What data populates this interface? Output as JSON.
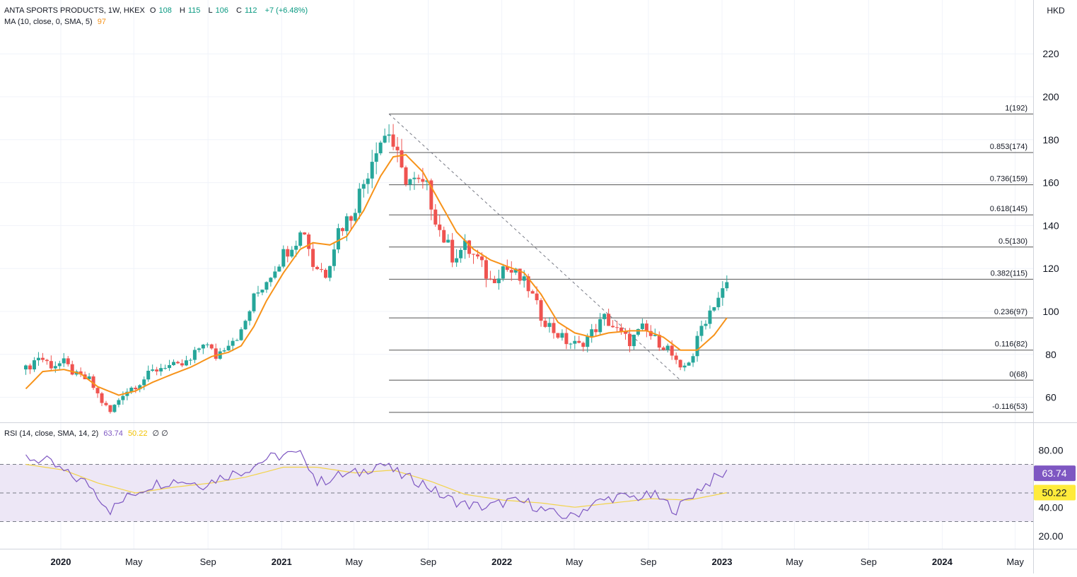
{
  "legend": {
    "symbol": "ANTA SPORTS PRODUCTS, 1W, HKEX",
    "o_label": "O",
    "o_value": "108",
    "h_label": "H",
    "h_value": "115",
    "l_label": "L",
    "l_value": "106",
    "c_label": "C",
    "c_value": "112",
    "change": "+7 (+6.48%)",
    "ma_label": "MA (10, close, 0, SMA, 5)",
    "ma_value": "97",
    "rsi_label": "RSI (14, close, SMA, 14, 2)",
    "rsi_value": "63.74",
    "rsi_ma_value": "50.22",
    "rsi_extra": "∅ ∅"
  },
  "currency": "HKD",
  "colors": {
    "up": "#26a69a",
    "down": "#ef5350",
    "ma": "#f7931a",
    "rsi": "#7e57c2",
    "rsi_ma": "#f2d34a",
    "rsi_band": "#ede7f6",
    "fib_line": "#555555",
    "grid": "#f0f3fa"
  },
  "chart_data": {
    "type": "candlestick",
    "interval": "1W",
    "price_axis": {
      "ticks": [
        60,
        80,
        100,
        120,
        140,
        160,
        180,
        200,
        220
      ],
      "tick_labels": [
        "60",
        "80",
        "100",
        "120",
        "140",
        "160",
        "180",
        "200",
        "220"
      ]
    },
    "time_axis": {
      "labels": [
        "2020",
        "May",
        "Sep",
        "2021",
        "May",
        "Sep",
        "2022",
        "May",
        "Sep",
        "2023",
        "May",
        "Sep",
        "2024",
        "May"
      ],
      "bold": [
        "2020",
        "2021",
        "2022",
        "2023",
        "2024"
      ]
    },
    "fib_start_date": "2021-06-28",
    "fib_high_date": "2021-06-28",
    "fib_low_date": "2022-10-24",
    "fib_levels": [
      {
        "ratio": "1",
        "price": 192,
        "label": "1(192)"
      },
      {
        "ratio": "0.853",
        "price": 174,
        "label": "0.853(174)"
      },
      {
        "ratio": "0.736",
        "price": 159,
        "label": "0.736(159)"
      },
      {
        "ratio": "0.618",
        "price": 145,
        "label": "0.618(145)"
      },
      {
        "ratio": "0.5",
        "price": 130,
        "label": "0.5(130)"
      },
      {
        "ratio": "0.382",
        "price": 115,
        "label": "0.382(115)"
      },
      {
        "ratio": "0.236",
        "price": 97,
        "label": "0.236(97)"
      },
      {
        "ratio": "0.116",
        "price": 82,
        "label": "0.116(82)"
      },
      {
        "ratio": "0",
        "price": 68,
        "label": "0(68)"
      },
      {
        "ratio": "-0.116",
        "price": 53,
        "label": "-0.116(53)"
      }
    ],
    "close_path": [
      [
        "2019-11-04",
        73
      ],
      [
        "2019-11-25",
        79
      ],
      [
        "2019-12-16",
        75
      ],
      [
        "2020-01-06",
        76
      ],
      [
        "2020-01-27",
        70
      ],
      [
        "2020-02-17",
        68
      ],
      [
        "2020-03-09",
        58
      ],
      [
        "2020-03-23",
        53
      ],
      [
        "2020-04-13",
        62
      ],
      [
        "2020-05-11",
        67
      ],
      [
        "2020-06-01",
        72
      ],
      [
        "2020-06-22",
        75
      ],
      [
        "2020-07-13",
        74
      ],
      [
        "2020-08-03",
        77
      ],
      [
        "2020-08-24",
        86
      ],
      [
        "2020-09-14",
        79
      ],
      [
        "2020-10-05",
        86
      ],
      [
        "2020-10-26",
        90
      ],
      [
        "2020-11-16",
        106
      ],
      [
        "2020-12-07",
        115
      ],
      [
        "2020-12-28",
        124
      ],
      [
        "2021-01-18",
        132
      ],
      [
        "2021-02-08",
        138
      ],
      [
        "2021-02-22",
        122
      ],
      [
        "2021-03-15",
        118
      ],
      [
        "2021-04-05",
        138
      ],
      [
        "2021-04-26",
        145
      ],
      [
        "2021-05-17",
        160
      ],
      [
        "2021-06-07",
        178
      ],
      [
        "2021-06-28",
        184
      ],
      [
        "2021-07-19",
        164
      ],
      [
        "2021-08-09",
        160
      ],
      [
        "2021-08-30",
        157
      ],
      [
        "2021-09-20",
        138
      ],
      [
        "2021-10-11",
        126
      ],
      [
        "2021-11-01",
        130
      ],
      [
        "2021-11-22",
        124
      ],
      [
        "2021-12-13",
        114
      ],
      [
        "2022-01-03",
        121
      ],
      [
        "2022-01-24",
        117
      ],
      [
        "2022-02-14",
        111
      ],
      [
        "2022-03-07",
        98
      ],
      [
        "2022-03-28",
        91
      ],
      [
        "2022-04-18",
        86
      ],
      [
        "2022-05-09",
        84
      ],
      [
        "2022-05-30",
        90
      ],
      [
        "2022-06-20",
        97
      ],
      [
        "2022-07-11",
        91
      ],
      [
        "2022-08-01",
        86
      ],
      [
        "2022-08-22",
        92
      ],
      [
        "2022-09-12",
        87
      ],
      [
        "2022-10-03",
        83
      ],
      [
        "2022-10-24",
        72
      ],
      [
        "2022-11-14",
        80
      ],
      [
        "2022-11-28",
        93
      ],
      [
        "2022-12-19",
        104
      ],
      [
        "2023-01-09",
        112
      ]
    ],
    "ma_path": [
      [
        "2019-11-04",
        64
      ],
      [
        "2019-12-02",
        72
      ],
      [
        "2020-01-06",
        73
      ],
      [
        "2020-02-03",
        71
      ],
      [
        "2020-03-02",
        65
      ],
      [
        "2020-04-06",
        61
      ],
      [
        "2020-05-04",
        63
      ],
      [
        "2020-06-01",
        67
      ],
      [
        "2020-07-06",
        71
      ],
      [
        "2020-08-03",
        74
      ],
      [
        "2020-09-07",
        79
      ],
      [
        "2020-10-05",
        81
      ],
      [
        "2020-10-26",
        84
      ],
      [
        "2020-11-16",
        93
      ],
      [
        "2020-12-07",
        105
      ],
      [
        "2021-01-04",
        118
      ],
      [
        "2021-02-01",
        129
      ],
      [
        "2021-02-22",
        132
      ],
      [
        "2021-03-22",
        131
      ],
      [
        "2021-04-19",
        135
      ],
      [
        "2021-05-17",
        147
      ],
      [
        "2021-06-14",
        163
      ],
      [
        "2021-07-05",
        172
      ],
      [
        "2021-07-26",
        173
      ],
      [
        "2021-08-23",
        165
      ],
      [
        "2021-09-20",
        151
      ],
      [
        "2021-10-18",
        137
      ],
      [
        "2021-11-15",
        129
      ],
      [
        "2021-12-13",
        124
      ],
      [
        "2022-01-10",
        121
      ],
      [
        "2022-02-07",
        118
      ],
      [
        "2022-03-07",
        108
      ],
      [
        "2022-04-04",
        95
      ],
      [
        "2022-05-02",
        90
      ],
      [
        "2022-05-30",
        88
      ],
      [
        "2022-06-27",
        90
      ],
      [
        "2022-08-01",
        91
      ],
      [
        "2022-08-29",
        91
      ],
      [
        "2022-09-26",
        88
      ],
      [
        "2022-10-24",
        82
      ],
      [
        "2022-11-21",
        82
      ],
      [
        "2022-12-19",
        89
      ],
      [
        "2023-01-09",
        97
      ]
    ],
    "rsi": {
      "ticks": [
        20,
        40,
        80
      ],
      "tick_labels": [
        "20.00",
        "40.00",
        "80.00"
      ],
      "overbought": 70,
      "middle": 50,
      "oversold": 30,
      "last_value": 63.74,
      "last_ma_value": 50.22,
      "rsi_path": [
        [
          "2019-11-04",
          75
        ],
        [
          "2019-12-09",
          72
        ],
        [
          "2020-01-13",
          63
        ],
        [
          "2020-02-17",
          56
        ],
        [
          "2020-03-23",
          38
        ],
        [
          "2020-04-27",
          49
        ],
        [
          "2020-06-01",
          56
        ],
        [
          "2020-07-13",
          59
        ],
        [
          "2020-08-24",
          56
        ],
        [
          "2020-09-28",
          62
        ],
        [
          "2020-11-02",
          66
        ],
        [
          "2020-12-07",
          74
        ],
        [
          "2021-01-11",
          77
        ],
        [
          "2021-02-08",
          76
        ],
        [
          "2021-03-01",
          57
        ],
        [
          "2021-04-05",
          62
        ],
        [
          "2021-05-10",
          64
        ],
        [
          "2021-06-14",
          71
        ],
        [
          "2021-07-19",
          62
        ],
        [
          "2021-08-23",
          57
        ],
        [
          "2021-09-27",
          47
        ],
        [
          "2021-11-01",
          42
        ],
        [
          "2021-12-06",
          40
        ],
        [
          "2022-01-10",
          44
        ],
        [
          "2022-02-14",
          43
        ],
        [
          "2022-03-21",
          36
        ],
        [
          "2022-04-25",
          33
        ],
        [
          "2022-05-30",
          42
        ],
        [
          "2022-07-04",
          47
        ],
        [
          "2022-08-08",
          47
        ],
        [
          "2022-09-12",
          48
        ],
        [
          "2022-10-17",
          38
        ],
        [
          "2022-11-21",
          52
        ],
        [
          "2022-12-19",
          60
        ],
        [
          "2023-01-09",
          63.74
        ]
      ],
      "ma_path": [
        [
          "2019-11-04",
          70
        ],
        [
          "2020-01-06",
          66
        ],
        [
          "2020-03-02",
          57
        ],
        [
          "2020-05-04",
          50
        ],
        [
          "2020-07-06",
          54
        ],
        [
          "2020-09-07",
          57
        ],
        [
          "2020-11-02",
          61
        ],
        [
          "2021-01-04",
          68
        ],
        [
          "2021-03-01",
          68
        ],
        [
          "2021-05-03",
          64
        ],
        [
          "2021-07-05",
          66
        ],
        [
          "2021-09-06",
          58
        ],
        [
          "2021-11-01",
          49
        ],
        [
          "2022-01-03",
          45
        ],
        [
          "2022-03-07",
          43
        ],
        [
          "2022-05-02",
          40
        ],
        [
          "2022-07-04",
          43
        ],
        [
          "2022-09-05",
          46
        ],
        [
          "2022-11-07",
          45
        ],
        [
          "2023-01-09",
          50.22
        ]
      ]
    }
  }
}
